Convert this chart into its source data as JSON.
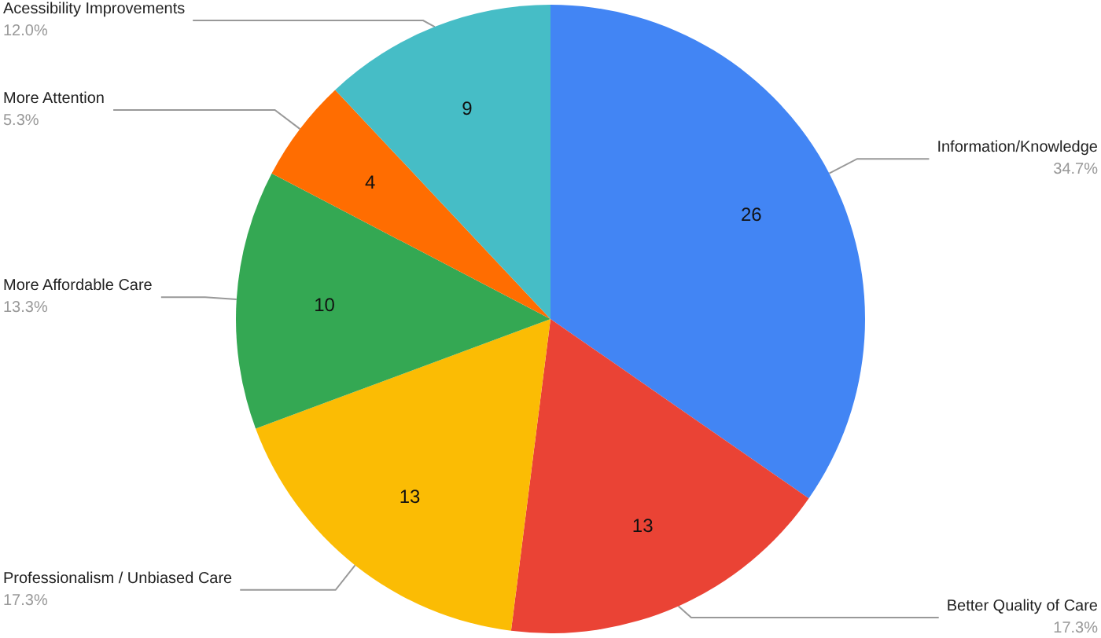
{
  "chart_data": {
    "type": "pie",
    "categories": [
      "Information/Knowledge",
      "Better Quality of Care",
      "Professionalism / Unbiased Care",
      "More Affordable Care",
      "More Attention",
      "Acessibility Improvements"
    ],
    "values": [
      26,
      13,
      13,
      10,
      4,
      9
    ],
    "colors": [
      "#4285f4",
      "#ea4335",
      "#fbbc04",
      "#34a853",
      "#ff6d01",
      "#46bdc6"
    ],
    "annotations": [
      "34.7%",
      "17.3%",
      "17.3%",
      "13.3%",
      "5.3%",
      "12.0%"
    ],
    "data_labels": true,
    "legend": false
  }
}
